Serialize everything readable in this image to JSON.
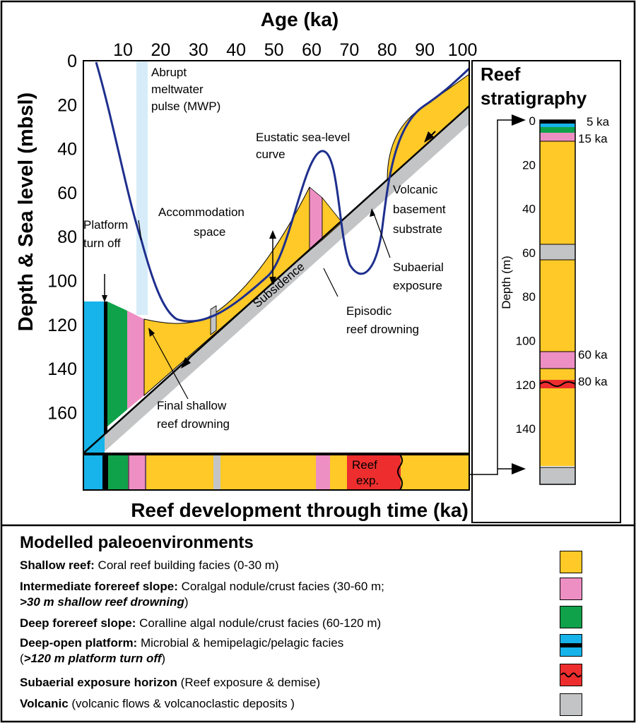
{
  "colors": {
    "shallow": "#FFC928",
    "intermediate": "#EE8FC4",
    "deep": "#0FA24A",
    "platform": "#16B4EA",
    "exposure": "#EE2E2E",
    "volcanic": "#C3C4C6",
    "curve": "#1E2F8E",
    "mwp": "#D6ECF8"
  },
  "top_axis": {
    "title": "Age (ka)",
    "ticks": [
      "10",
      "20",
      "30",
      "40",
      "50",
      "60",
      "70",
      "80",
      "90",
      "100"
    ]
  },
  "left_axis": {
    "title": "Depth & Sea level  (mbsl)",
    "ticks": [
      "0",
      "20",
      "40",
      "60",
      "80",
      "100",
      "120",
      "140",
      "160"
    ]
  },
  "annotations": {
    "mwp": [
      "Abrupt",
      "meltwater",
      "pulse (MWP)"
    ],
    "eustatic": [
      "Eustatic sea-level",
      "curve"
    ],
    "volcanic_basement": [
      "Volcanic",
      "basement",
      "substrate"
    ],
    "accommodation": [
      "Accommodation",
      "space"
    ],
    "platform_turnoff": [
      "Platform",
      "turn off"
    ],
    "subsidence": "Subsidence",
    "episodic": [
      "Episodic",
      "reef drowning"
    ],
    "subaerial": [
      "Subaerial",
      "exposure"
    ],
    "final_shallow": [
      "Final shallow",
      "reef drowning"
    ]
  },
  "bottom_bar": {
    "title": "Reef development through time (ka)",
    "exposure_label": [
      "Reef",
      "exp."
    ]
  },
  "strat": {
    "title": [
      "Reef",
      "stratigraphy"
    ],
    "axis_label": "Depth (m)",
    "ticks": [
      "0",
      "20",
      "40",
      "60",
      "80",
      "100",
      "120",
      "140"
    ],
    "age_labels": [
      "5 ka",
      "15 ka",
      "60 ka",
      "80 ka"
    ]
  },
  "legend": {
    "title": "Modelled paleoenvironments",
    "items": [
      {
        "bold": "Shallow reef:",
        "text": " Coral reef building facies (0-30 m)"
      },
      {
        "bold": "Intermediate forereef slope:",
        "text": " Coralgal nodule/crust facies (30-60 m;",
        "bolditalic": ">30 m shallow reef drowning",
        "after": ")"
      },
      {
        "bold": "Deep forereef slope:",
        "text": " Coralline algal nodule/crust facies (60-120 m)"
      },
      {
        "bold": "Deep-open platform:",
        "text": " Microbial & hemipelagic/pelagic facies",
        "prefix2": "(",
        "bolditalic": ">120 m platform turn off",
        "after": ")"
      },
      {
        "bold": "Subaerial exposure horizon",
        "text": " (Reef exposure & demise)"
      },
      {
        "bold": "Volcanic",
        "text": " (volcanic flows & volcanoclastic deposits )"
      }
    ]
  }
}
